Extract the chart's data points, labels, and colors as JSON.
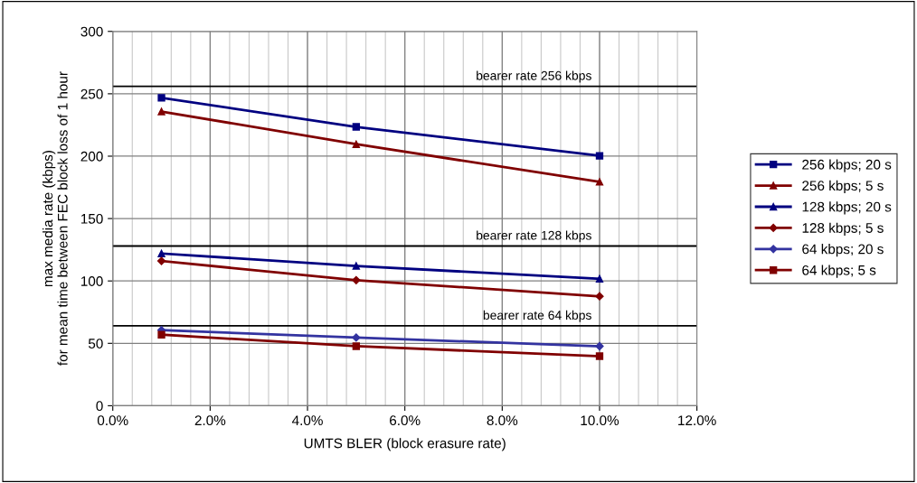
{
  "chart_data": {
    "type": "line",
    "xlabel": "UMTS BLER (block erasure rate)",
    "ylabel": "max media rate (kbps)\nfor mean time between FEC block loss of 1 hour",
    "x": [
      1,
      5,
      10
    ],
    "series": [
      {
        "name": "256 kbps; 20 s",
        "color": "#000080",
        "marker": "square",
        "values": [
          246.8,
          223.5,
          200.3
        ]
      },
      {
        "name": "256 kbps; 5 s",
        "color": "#800000",
        "marker": "triangle",
        "values": [
          235.8,
          209.6,
          179.4
        ]
      },
      {
        "name": "128 kbps; 20 s",
        "color": "#000080",
        "marker": "triangle",
        "values": [
          122,
          112,
          101.7
        ]
      },
      {
        "name": "128 kbps; 5 s",
        "color": "#800000",
        "marker": "diamond",
        "values": [
          116,
          100.6,
          87.7
        ]
      },
      {
        "name": "64 kbps; 20 s",
        "color": "#3333a0",
        "marker": "diamond",
        "values": [
          60.6,
          54.6,
          47.7
        ]
      },
      {
        "name": "64 kbps; 5 s",
        "color": "#800000",
        "marker": "square",
        "values": [
          56.9,
          47.7,
          39.7
        ]
      }
    ],
    "xlim": [
      0,
      12
    ],
    "xticks": [
      {
        "value": 0,
        "label": "0.0%"
      },
      {
        "value": 2,
        "label": "2.0%"
      },
      {
        "value": 4,
        "label": "4.0%"
      },
      {
        "value": 6,
        "label": "6.0%"
      },
      {
        "value": 8,
        "label": "8.0%"
      },
      {
        "value": 10,
        "label": "10.0%"
      },
      {
        "value": 12,
        "label": "12.0%"
      }
    ],
    "ylim": [
      0,
      300
    ],
    "yticks": [
      0,
      50,
      100,
      150,
      200,
      250,
      300
    ],
    "ref_lines": [
      {
        "axis": "y",
        "value": 256,
        "label": "bearer rate 256 kbps",
        "color": "#000000"
      },
      {
        "axis": "y",
        "value": 128,
        "label": "bearer rate 128 kbps",
        "color": "#000000"
      },
      {
        "axis": "y",
        "value": 64,
        "label": "bearer rate 64 kbps",
        "color": "#000000"
      }
    ],
    "grid": true,
    "legend": "right",
    "line_style": "solid"
  }
}
